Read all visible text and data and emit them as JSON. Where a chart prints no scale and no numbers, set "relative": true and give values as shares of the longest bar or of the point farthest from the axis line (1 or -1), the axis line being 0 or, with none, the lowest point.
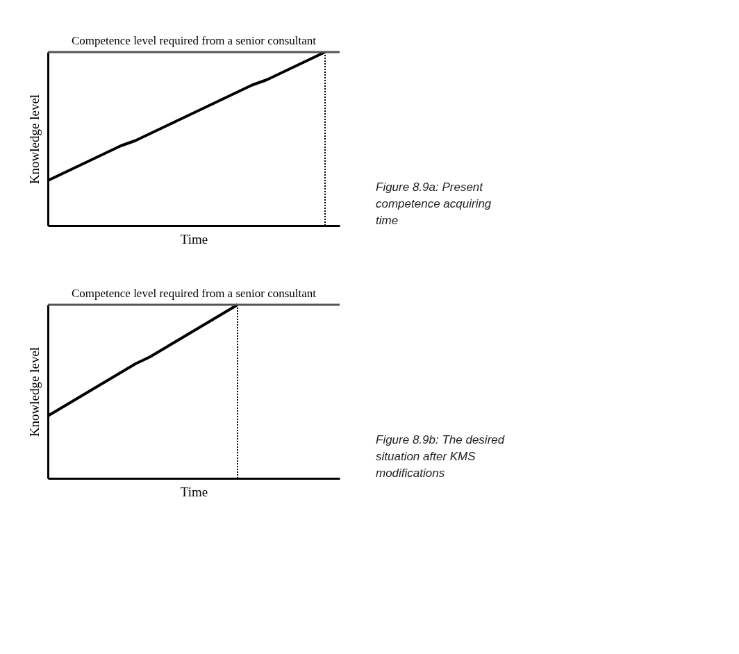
{
  "chart_data": [
    {
      "type": "line",
      "relative": true,
      "xlabel": "Time",
      "ylabel": "Knowledge level",
      "tick_labels": false,
      "grid": false,
      "marker": "none",
      "categories": [
        null,
        null,
        null,
        null,
        null,
        null,
        null,
        null,
        null,
        null,
        null,
        null,
        null,
        null,
        null,
        null,
        null,
        null,
        null,
        null,
        null
      ],
      "series": [
        {
          "color": "#000000",
          "line_style": "solid",
          "values": [
            0.26,
            0.3,
            0.34,
            0.38,
            0.42,
            0.46,
            0.49,
            0.53,
            0.57,
            0.61,
            0.65,
            0.69,
            0.73,
            0.77,
            0.81,
            0.84,
            0.88,
            0.92,
            0.96,
            1,
            null
          ]
        }
      ],
      "ref_lines": [
        {
          "axis": "y",
          "value": 1,
          "label": "Competence level required from a senior consultant",
          "color": "#555555",
          "line_style": "solid"
        }
      ],
      "annotations": [
        "Figure 8.9a: Present competence acquiring time"
      ]
    },
    {
      "type": "line",
      "relative": true,
      "xlabel": "Time",
      "ylabel": "Knowledge level",
      "tick_labels": false,
      "grid": false,
      "marker": "none",
      "categories": [
        null,
        null,
        null,
        null,
        null,
        null,
        null,
        null,
        null,
        null,
        null,
        null,
        null,
        null,
        null,
        null,
        null,
        null,
        null,
        null,
        null
      ],
      "series": [
        {
          "color": "#000000",
          "line_style": "solid",
          "values": [
            0.36,
            0.41,
            0.46,
            0.51,
            0.56,
            0.61,
            0.66,
            0.7,
            0.75,
            0.8,
            0.85,
            0.9,
            0.95,
            1,
            null,
            null,
            null,
            null,
            null,
            null,
            null
          ]
        }
      ],
      "ref_lines": [
        {
          "axis": "y",
          "value": 1,
          "label": "Competence level required from a senior consultant",
          "color": "#555555",
          "line_style": "solid"
        }
      ],
      "annotations": [
        "Figure 8.9b: The desired situation after KMS modifications"
      ]
    }
  ]
}
